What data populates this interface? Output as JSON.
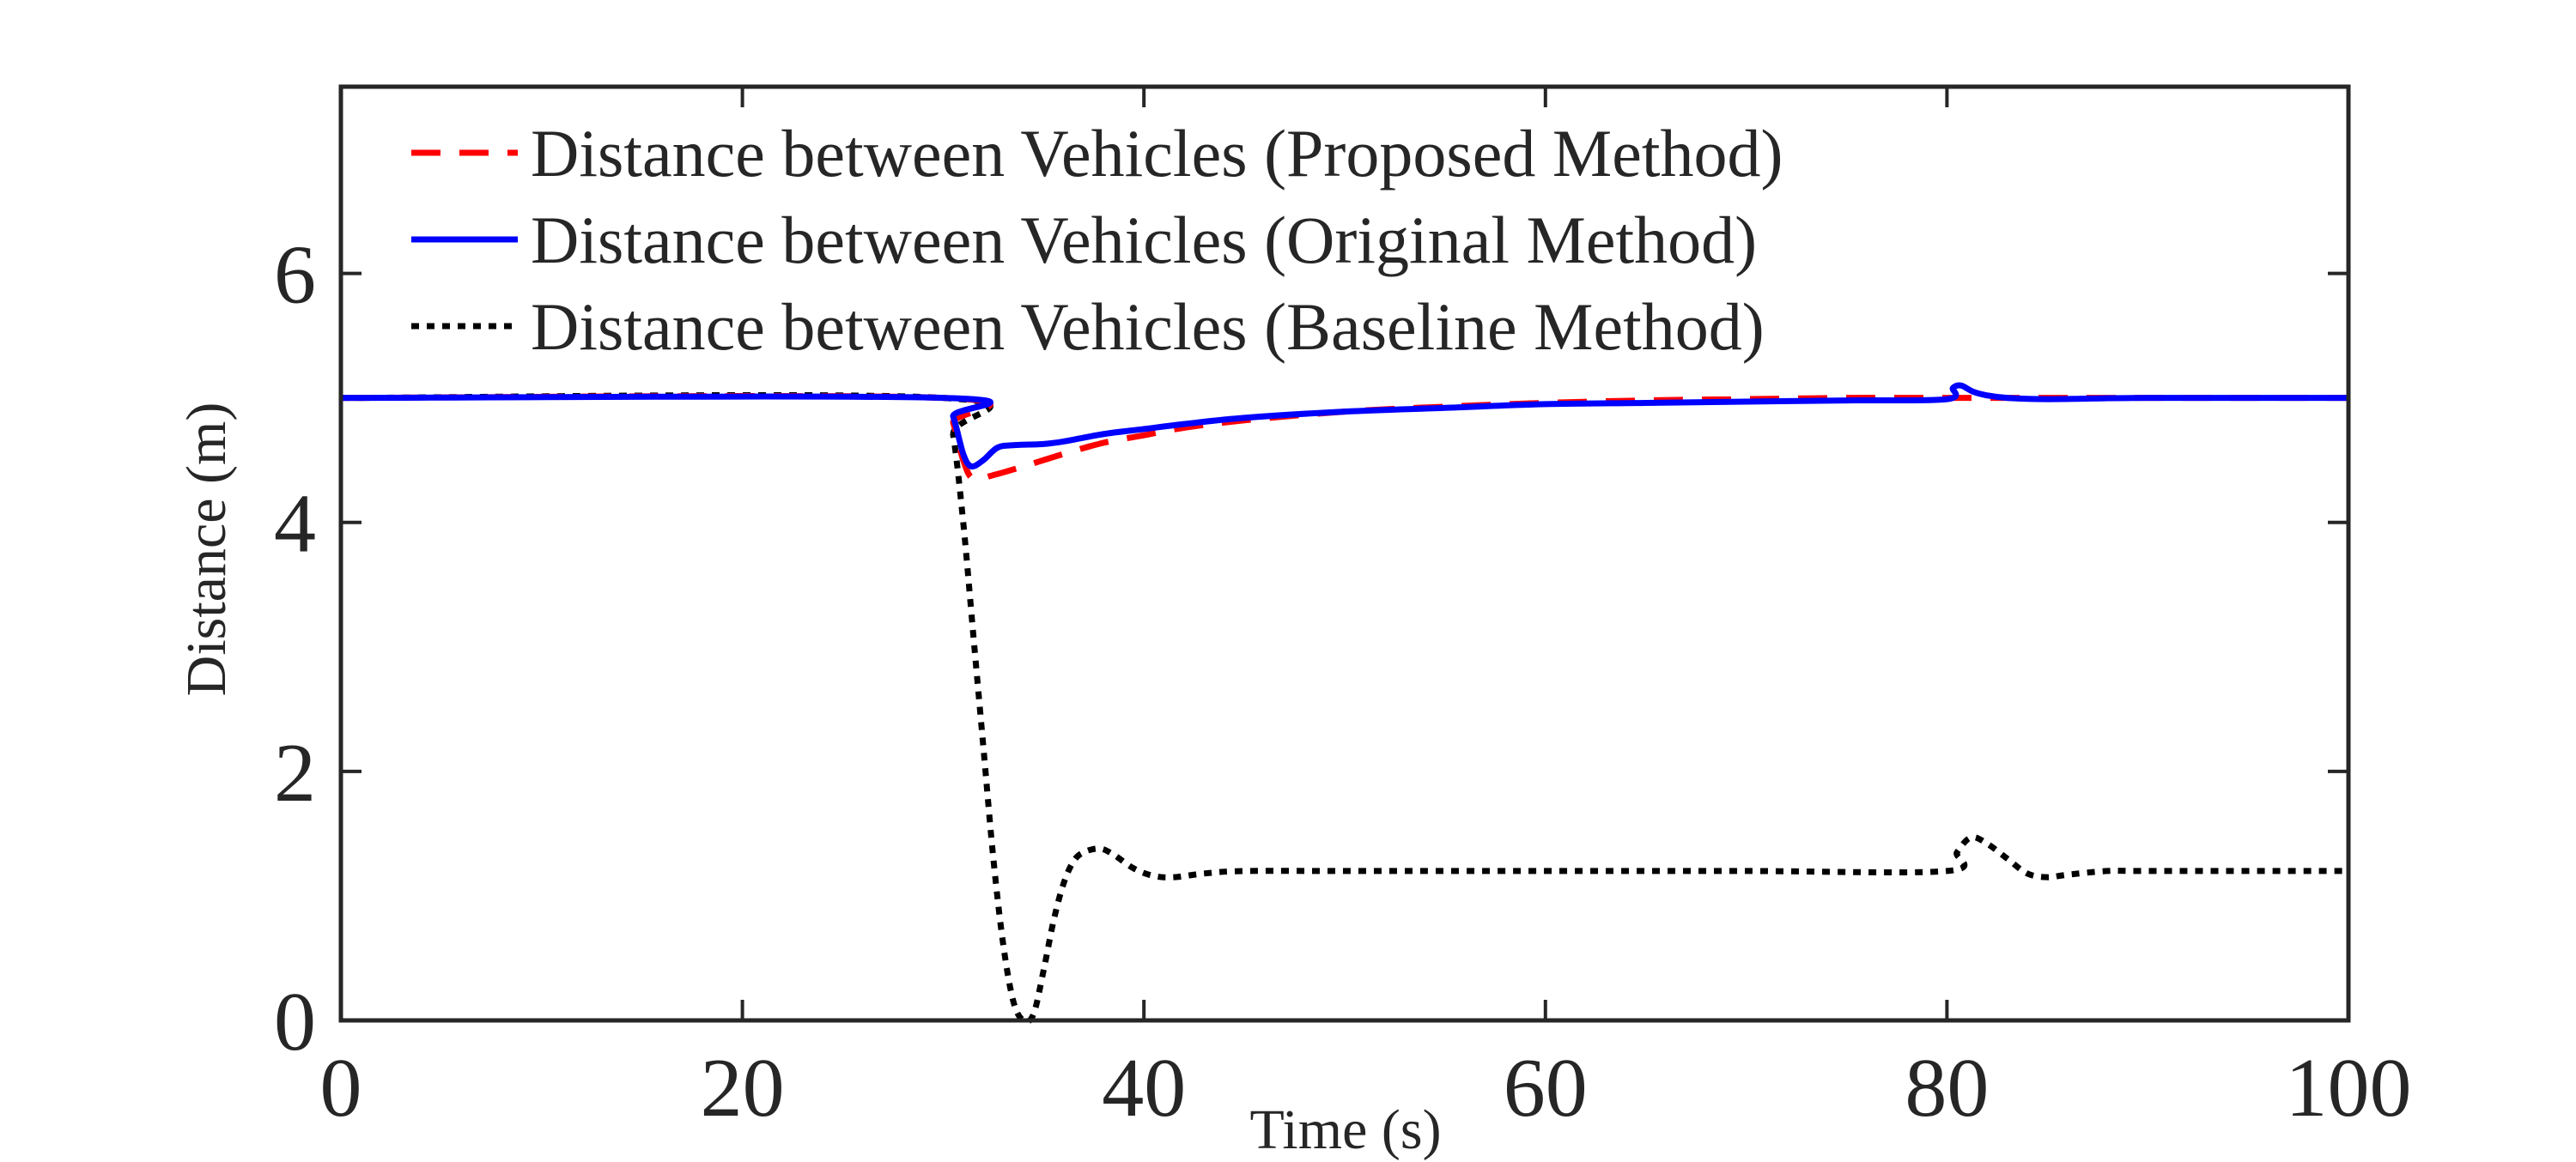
{
  "chart_data": {
    "type": "line",
    "title": "",
    "xlabel": "Time (s)",
    "ylabel": "Distance (m)",
    "xlim": [
      0,
      100
    ],
    "ylim": [
      0,
      7.5
    ],
    "xticks": [
      0,
      20,
      40,
      60,
      80,
      100
    ],
    "yticks": [
      0,
      2,
      4,
      6
    ],
    "grid": false,
    "legend_placement": "top-left",
    "series": [
      {
        "name": "Distance between Vehicles (Proposed Method)",
        "color": "#ff0000",
        "style": "dashed",
        "x": [
          0,
          30,
          30.5,
          31,
          31.5,
          32.5,
          34,
          36,
          38,
          40,
          42,
          45,
          50,
          55,
          60,
          65,
          70,
          75,
          80,
          85,
          90,
          100
        ],
        "y": [
          5,
          5,
          4.8,
          4.5,
          4.35,
          4.38,
          4.45,
          4.55,
          4.64,
          4.7,
          4.76,
          4.82,
          4.89,
          4.93,
          4.96,
          4.98,
          4.99,
          5.0,
          5.0,
          5.0,
          5.0,
          5.0
        ]
      },
      {
        "name": "Distance between Vehicles (Original Method)",
        "color": "#0000ff",
        "style": "solid",
        "x": [
          0,
          30,
          30.5,
          31,
          31.4,
          32,
          32.7,
          33.5,
          35,
          36,
          38,
          40,
          42,
          45,
          50,
          55,
          60,
          65,
          70,
          75,
          80,
          80.3,
          80.7,
          81.3,
          82,
          83,
          85,
          90,
          100
        ],
        "y": [
          5,
          5,
          4.85,
          4.55,
          4.45,
          4.5,
          4.6,
          4.62,
          4.63,
          4.65,
          4.71,
          4.75,
          4.79,
          4.84,
          4.89,
          4.92,
          4.95,
          4.96,
          4.97,
          4.98,
          4.99,
          5.08,
          5.1,
          5.05,
          5.02,
          5.0,
          4.99,
          5.0,
          5.0
        ]
      },
      {
        "name": "Distance between Vehicles (Baseline Method)",
        "color": "#000000",
        "style": "dotted",
        "x": [
          0,
          30,
          30.5,
          31,
          31.5,
          32,
          32.5,
          33,
          33.5,
          34,
          34.5,
          35,
          35.5,
          36,
          36.5,
          37,
          37.8,
          38.5,
          39.5,
          40.5,
          41.5,
          43,
          45,
          50,
          60,
          70,
          80,
          80.5,
          81.2,
          82,
          83,
          84,
          85,
          86,
          88,
          90,
          100
        ],
        "y": [
          5,
          5,
          4.7,
          4.0,
          3.1,
          2.2,
          1.3,
          0.6,
          0.15,
          0.0,
          0.05,
          0.4,
          0.8,
          1.1,
          1.28,
          1.35,
          1.38,
          1.33,
          1.22,
          1.16,
          1.15,
          1.18,
          1.2,
          1.2,
          1.2,
          1.2,
          1.2,
          1.35,
          1.47,
          1.42,
          1.3,
          1.18,
          1.15,
          1.17,
          1.2,
          1.2,
          1.2
        ]
      }
    ]
  }
}
